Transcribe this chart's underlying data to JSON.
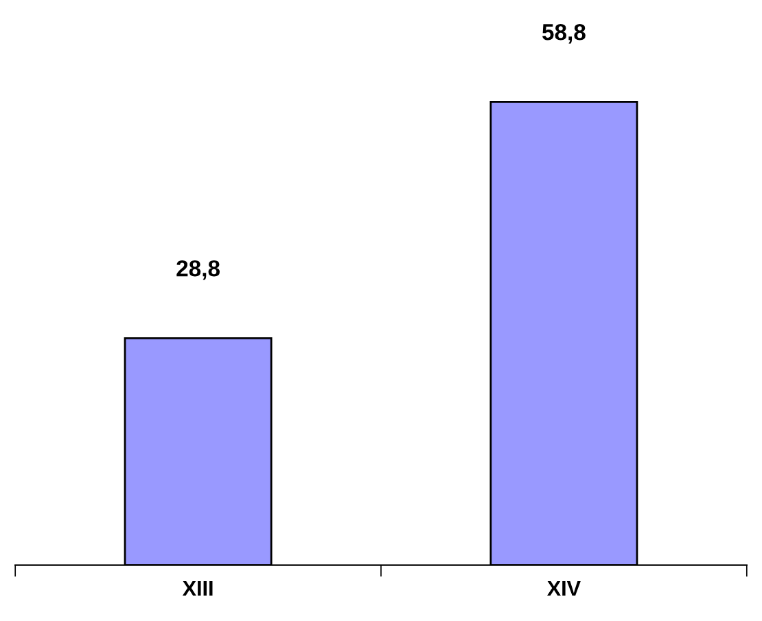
{
  "chart_data": {
    "type": "bar",
    "categories": [
      "XIII",
      "XIV"
    ],
    "values": [
      28.8,
      58.8
    ],
    "value_labels": [
      "28,8",
      "58,8"
    ],
    "color": "#9999ff",
    "grid": false,
    "legend": false,
    "tick_labels": "x"
  }
}
